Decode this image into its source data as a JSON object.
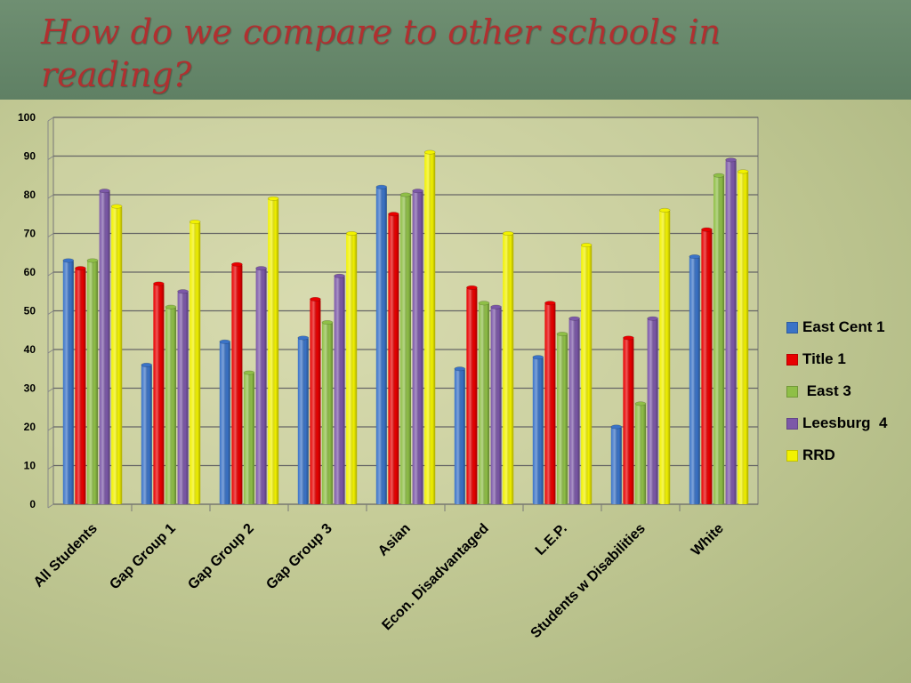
{
  "slide": {
    "title": "How do we compare to other schools in reading?"
  },
  "colors": {
    "header_band": "#5f8064",
    "title_text": "#b03030",
    "background": "#c6cc98",
    "gridline": "#666666"
  },
  "chart_data": {
    "type": "bar",
    "title": "",
    "xlabel": "",
    "ylabel": "",
    "ylim": [
      0,
      100
    ],
    "yticks": [
      0,
      10,
      20,
      30,
      40,
      50,
      60,
      70,
      80,
      90,
      100
    ],
    "grid": true,
    "legend_position": "right",
    "categories": [
      "All Students",
      "Gap Group 1",
      "Gap Group 2",
      "Gap Group 3",
      "Asian",
      "Econ. Disadvantaged",
      "L.E.P.",
      "Students w Disabilities",
      "White"
    ],
    "series": [
      {
        "name": "East Cent 1",
        "color": "#3a73c7",
        "values": [
          63,
          36,
          42,
          43,
          82,
          35,
          38,
          20,
          64
        ]
      },
      {
        "name": "Title 1",
        "color": "#e80000",
        "values": [
          61,
          57,
          62,
          53,
          75,
          56,
          52,
          43,
          71
        ]
      },
      {
        "name": " East 3",
        "color": "#8fbf47",
        "values": [
          63,
          51,
          34,
          47,
          80,
          52,
          44,
          26,
          85
        ]
      },
      {
        "name": "Leesburg  4",
        "color": "#7c58a8",
        "values": [
          81,
          55,
          61,
          59,
          81,
          51,
          48,
          48,
          89
        ]
      },
      {
        "name": "RRD",
        "color": "#f2f200",
        "values": [
          77,
          73,
          79,
          70,
          91,
          70,
          67,
          76,
          86
        ]
      }
    ]
  }
}
